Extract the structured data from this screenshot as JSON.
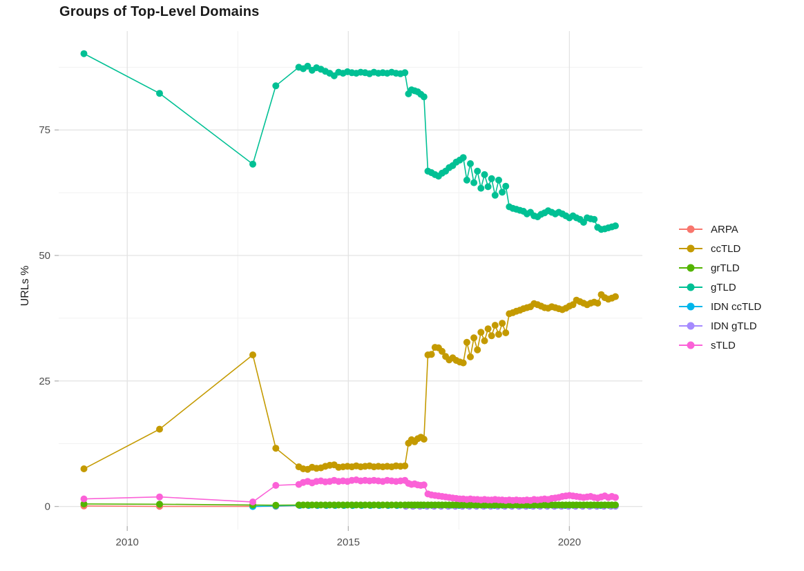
{
  "chart_data": {
    "type": "line",
    "title": "Groups of Top-Level Domains",
    "xlabel": "",
    "ylabel": "URLs %",
    "legend_position": "right",
    "grid": true,
    "background": "#ffffff",
    "major_grid_color": "#e3e3e3",
    "minor_grid_color": "#f1f1f1",
    "tick_color": "#b3b3b3",
    "tick_label_color": "#4d4d4d",
    "x_ticks": [
      2010,
      2015,
      2020
    ],
    "x_minor_ticks": [
      2012.5,
      2017.5
    ],
    "y_ticks": [
      0,
      25,
      50,
      75
    ],
    "y_minor_ticks": [
      12.5,
      37.5,
      62.5,
      87.5
    ],
    "x_range": [
      2008.45,
      2021.65
    ],
    "y_range": [
      -4.6,
      94.7
    ],
    "x_main": [
      2009.02,
      2010.73,
      2012.84,
      2013.36,
      2013.88,
      2013.98,
      2014.08,
      2014.18,
      2014.28,
      2014.38,
      2014.48,
      2014.58,
      2014.68,
      2014.78,
      2014.88,
      2014.98,
      2015.08,
      2015.18,
      2015.28,
      2015.38,
      2015.48,
      2015.58,
      2015.68,
      2015.78,
      2015.88,
      2015.98,
      2016.08,
      2016.18,
      2016.28,
      2016.36,
      2016.43,
      2016.5,
      2016.57,
      2016.64,
      2016.71,
      2016.8,
      2016.88,
      2016.96,
      2017.04,
      2017.12,
      2017.2,
      2017.28,
      2017.36,
      2017.44,
      2017.52,
      2017.6,
      2017.68,
      2017.76,
      2017.84,
      2017.92,
      2018.0,
      2018.08,
      2018.16,
      2018.24,
      2018.32,
      2018.4,
      2018.48,
      2018.56,
      2018.64,
      2018.72,
      2018.8,
      2018.88,
      2018.96,
      2019.04,
      2019.12,
      2019.2,
      2019.28,
      2019.36,
      2019.44,
      2019.52,
      2019.6,
      2019.68,
      2019.76,
      2019.84,
      2019.92,
      2020.0,
      2020.08,
      2020.16,
      2020.24,
      2020.32,
      2020.4,
      2020.48,
      2020.56,
      2020.64,
      2020.72,
      2020.8,
      2020.88,
      2020.96,
      2021.04
    ],
    "draw_order": [
      "ARPA",
      "IDN ccTLD",
      "IDN gTLD",
      "ccTLD",
      "gTLD",
      "grTLD",
      "sTLD"
    ],
    "series": [
      {
        "name": "ARPA",
        "color": "#F8766D",
        "x": [
          2009.02,
          2010.73,
          2012.84,
          2013.36,
          2013.9,
          2014.1,
          2014.3,
          2014.5,
          2014.7,
          2014.9,
          2015.1,
          2015.3,
          2015.5,
          2015.7,
          2015.9,
          2016.1,
          2016.3,
          2016.5,
          2016.7,
          2016.9,
          2017.1,
          2017.3,
          2017.5,
          2017.7,
          2017.9,
          2018.1,
          2018.3,
          2018.5,
          2018.7,
          2018.9,
          2019.1,
          2019.3,
          2019.5,
          2019.7,
          2019.9,
          2020.1,
          2020.3,
          2020.5,
          2020.7,
          2020.9,
          2021.0
        ],
        "y": [
          0.1,
          0.02,
          0.02,
          0.05,
          0.2,
          0.2,
          0.2,
          0.2,
          0.2,
          0.2,
          0.2,
          0.2,
          0.2,
          0.2,
          0.2,
          0.2,
          0.2,
          0.2,
          0.2,
          0.2,
          0.2,
          0.2,
          0.2,
          0.2,
          0.2,
          0.2,
          0.2,
          0.2,
          0.2,
          0.2,
          0.2,
          0.2,
          0.2,
          0.2,
          0.2,
          0.2,
          0.2,
          0.2,
          0.2,
          0.2,
          0.2
        ]
      },
      {
        "name": "ccTLD",
        "color": "#C49A00",
        "x": "main",
        "y": [
          7.5,
          15.4,
          30.2,
          11.6,
          7.9,
          7.5,
          7.4,
          7.8,
          7.6,
          7.7,
          8.0,
          8.2,
          8.3,
          7.8,
          7.9,
          8.0,
          7.9,
          8.1,
          7.9,
          8.0,
          8.1,
          7.9,
          8.0,
          7.9,
          8.0,
          7.9,
          8.1,
          8.0,
          8.1,
          12.6,
          13.3,
          12.9,
          13.5,
          13.8,
          13.4,
          30.2,
          30.3,
          31.7,
          31.6,
          30.9,
          29.9,
          29.2,
          29.6,
          29.1,
          28.8,
          28.6,
          32.7,
          29.8,
          33.6,
          31.2,
          34.7,
          33.0,
          35.4,
          34.0,
          36.1,
          34.3,
          36.5,
          34.6,
          38.4,
          38.6,
          38.9,
          39.1,
          39.4,
          39.6,
          39.8,
          40.4,
          40.2,
          39.9,
          39.6,
          39.5,
          39.8,
          39.6,
          39.4,
          39.2,
          39.5,
          39.9,
          40.2,
          41.1,
          40.8,
          40.5,
          40.2,
          40.5,
          40.7,
          40.5,
          42.2,
          41.6,
          41.3,
          41.5,
          41.8
        ]
      },
      {
        "name": "grTLD",
        "color": "#53B400",
        "x": "main",
        "y": [
          0.5,
          0.45,
          0.3,
          0.25,
          0.3,
          0.3,
          0.3,
          0.3,
          0.3,
          0.3,
          0.3,
          0.3,
          0.3,
          0.3,
          0.3,
          0.3,
          0.3,
          0.3,
          0.3,
          0.3,
          0.3,
          0.3,
          0.3,
          0.3,
          0.3,
          0.3,
          0.3,
          0.3,
          0.3,
          0.3,
          0.3,
          0.3,
          0.3,
          0.3,
          0.3,
          0.3,
          0.3,
          0.3,
          0.3,
          0.3,
          0.3,
          0.3,
          0.3,
          0.3,
          0.3,
          0.3,
          0.3,
          0.3,
          0.3,
          0.3,
          0.3,
          0.3,
          0.3,
          0.3,
          0.3,
          0.3,
          0.3,
          0.3,
          0.3,
          0.3,
          0.3,
          0.3,
          0.3,
          0.3,
          0.3,
          0.3,
          0.3,
          0.3,
          0.3,
          0.3,
          0.3,
          0.3,
          0.3,
          0.3,
          0.3,
          0.3,
          0.3,
          0.3,
          0.3,
          0.3,
          0.3,
          0.3,
          0.3,
          0.3,
          0.3,
          0.3,
          0.3,
          0.3,
          0.3
        ]
      },
      {
        "name": "gTLD",
        "color": "#00C094",
        "x": "main",
        "y": [
          90.2,
          82.3,
          68.2,
          83.8,
          87.5,
          87.2,
          87.7,
          86.9,
          87.4,
          87.1,
          86.7,
          86.3,
          85.8,
          86.5,
          86.3,
          86.6,
          86.4,
          86.3,
          86.5,
          86.4,
          86.2,
          86.5,
          86.3,
          86.4,
          86.3,
          86.5,
          86.3,
          86.2,
          86.4,
          82.2,
          83.0,
          82.8,
          82.6,
          82.1,
          81.6,
          66.8,
          66.5,
          66.1,
          65.8,
          66.4,
          66.8,
          67.5,
          67.9,
          68.6,
          69.0,
          69.5,
          65.0,
          68.3,
          64.5,
          66.8,
          63.4,
          66.1,
          63.7,
          65.3,
          62.0,
          65.0,
          62.6,
          63.8,
          59.7,
          59.4,
          59.2,
          59.0,
          58.8,
          58.3,
          58.6,
          57.9,
          57.7,
          58.2,
          58.5,
          58.9,
          58.6,
          58.3,
          58.6,
          58.3,
          57.9,
          57.5,
          57.9,
          57.5,
          57.2,
          56.6,
          57.5,
          57.3,
          57.2,
          55.6,
          55.2,
          55.3,
          55.5,
          55.7,
          55.9
        ]
      },
      {
        "name": "IDN ccTLD",
        "color": "#00B6EB",
        "x": [
          2012.84,
          2013.36,
          2013.9,
          2014.1,
          2014.3,
          2014.5,
          2014.7,
          2014.9,
          2015.1,
          2015.3,
          2015.5,
          2015.7,
          2015.9,
          2016.1,
          2016.3,
          2016.5,
          2016.7,
          2016.9,
          2017.1,
          2017.3,
          2017.5,
          2017.7,
          2017.9,
          2018.1,
          2018.3,
          2018.5,
          2018.7,
          2018.9,
          2019.1,
          2019.3,
          2019.5,
          2019.7,
          2019.9,
          2020.1,
          2020.3,
          2020.5,
          2020.7,
          2020.9,
          2021.0
        ],
        "y": [
          0.0,
          0.1,
          0.2,
          0.2,
          0.2,
          0.2,
          0.2,
          0.2,
          0.2,
          0.2,
          0.2,
          0.2,
          0.2,
          0.2,
          0.2,
          0.2,
          0.2,
          0.2,
          0.2,
          0.2,
          0.2,
          0.2,
          0.2,
          0.2,
          0.2,
          0.2,
          0.2,
          0.2,
          0.2,
          0.2,
          0.2,
          0.2,
          0.2,
          0.2,
          0.2,
          0.2,
          0.2,
          0.2,
          0.2
        ]
      },
      {
        "name": "IDN gTLD",
        "color": "#A58AFF",
        "x": [
          2016.3,
          2016.46,
          2016.62,
          2016.78,
          2016.94,
          2017.1,
          2017.26,
          2017.42,
          2017.58,
          2017.74,
          2017.9,
          2018.06,
          2018.22,
          2018.38,
          2018.54,
          2018.7,
          2018.86,
          2019.02,
          2019.18,
          2019.34,
          2019.5,
          2019.66,
          2019.82,
          2019.98,
          2020.14,
          2020.3,
          2020.46,
          2020.62,
          2020.78,
          2020.94,
          2021.04
        ],
        "y": [
          0.05,
          0.05,
          0.05,
          0.05,
          0.05,
          0.05,
          0.05,
          0.05,
          0.05,
          0.05,
          0.05,
          0.05,
          0.05,
          0.05,
          0.05,
          0.05,
          0.05,
          0.05,
          0.05,
          0.05,
          0.05,
          0.05,
          0.05,
          0.05,
          0.05,
          0.05,
          0.05,
          0.05,
          0.05,
          0.05,
          0.05
        ]
      },
      {
        "name": "sTLD",
        "color": "#FB61D7",
        "x": "main",
        "y": [
          1.5,
          1.9,
          0.9,
          4.2,
          4.4,
          4.8,
          5.0,
          4.7,
          5.0,
          5.1,
          4.9,
          5.0,
          5.2,
          5.0,
          5.1,
          5.0,
          5.2,
          5.3,
          5.1,
          5.2,
          5.1,
          5.2,
          5.1,
          5.0,
          5.2,
          5.1,
          5.0,
          5.1,
          5.2,
          4.6,
          4.4,
          4.5,
          4.3,
          4.2,
          4.3,
          2.5,
          2.3,
          2.2,
          2.1,
          2.0,
          1.9,
          1.8,
          1.7,
          1.6,
          1.5,
          1.5,
          1.4,
          1.5,
          1.4,
          1.4,
          1.3,
          1.4,
          1.3,
          1.3,
          1.4,
          1.3,
          1.3,
          1.2,
          1.3,
          1.2,
          1.3,
          1.2,
          1.2,
          1.3,
          1.2,
          1.4,
          1.3,
          1.4,
          1.5,
          1.4,
          1.6,
          1.7,
          1.8,
          2.0,
          2.1,
          2.2,
          2.1,
          2.0,
          1.9,
          1.8,
          1.9,
          2.0,
          1.8,
          1.7,
          1.9,
          2.1,
          1.8,
          2.0,
          1.8
        ]
      }
    ]
  }
}
